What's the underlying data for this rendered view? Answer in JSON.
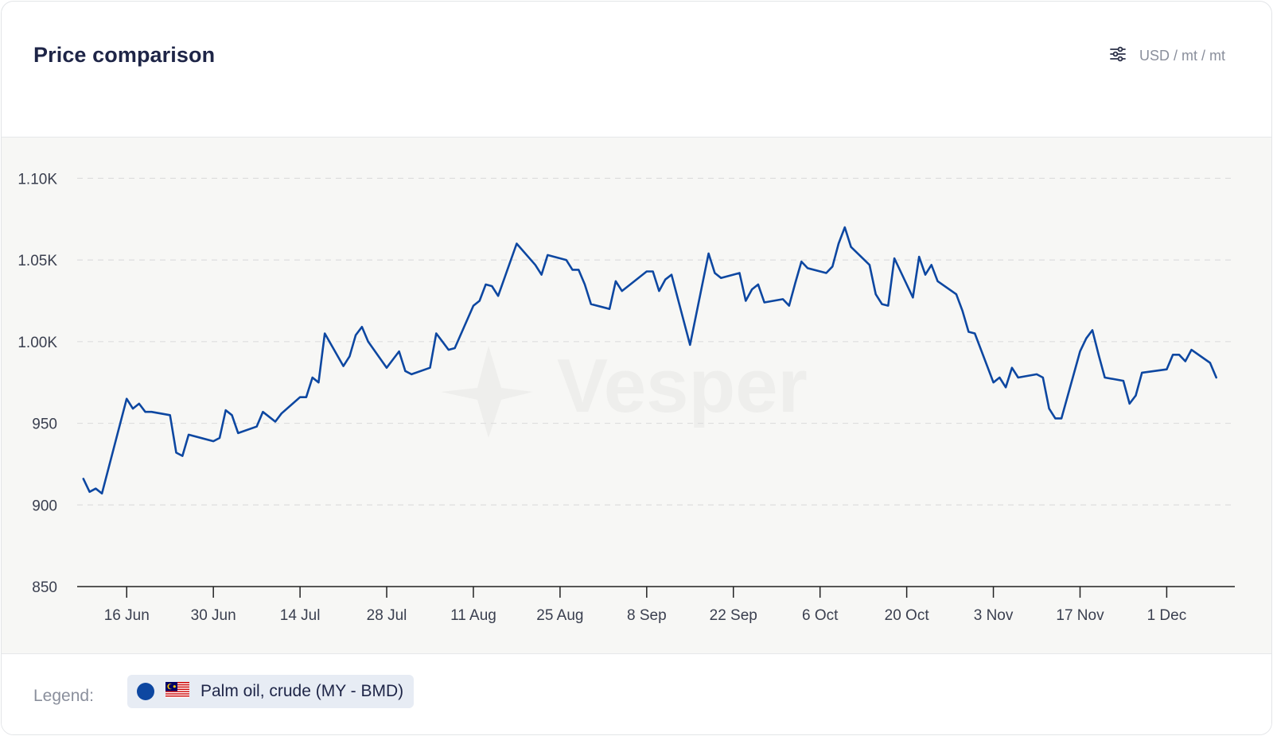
{
  "header": {
    "title": "Price comparison",
    "unit_label": "USD / mt / mt",
    "settings_icon": "sliders-icon"
  },
  "legend": {
    "label": "Legend:",
    "items": [
      {
        "name": "Palm oil, crude (MY - BMD)",
        "color": "#0d47a1",
        "flag": "malaysia-flag-icon"
      }
    ]
  },
  "watermark": "Vesper",
  "chart_data": {
    "type": "line",
    "title": "Price comparison",
    "xlabel": "",
    "ylabel": "",
    "ylim": [
      850,
      1125
    ],
    "yticks": [
      850,
      900,
      950,
      1000,
      1050,
      1100
    ],
    "ytick_labels": [
      "850",
      "900",
      "950",
      "1.00K",
      "1.05K",
      "1.10K"
    ],
    "xticks": [
      "2023-06-16",
      "2023-06-30",
      "2023-07-14",
      "2023-07-28",
      "2023-08-11",
      "2023-08-25",
      "2023-09-08",
      "2023-09-22",
      "2023-10-06",
      "2023-10-20",
      "2023-11-03",
      "2023-11-17",
      "2023-12-01"
    ],
    "xtick_labels": [
      "16 Jun",
      "30 Jun",
      "14 Jul",
      "28 Jul",
      "11 Aug",
      "25 Aug",
      "8 Sep",
      "22 Sep",
      "6 Oct",
      "20 Oct",
      "3 Nov",
      "17 Nov",
      "1 Dec"
    ],
    "xlim": [
      "2023-06-08",
      "2023-12-12"
    ],
    "grid": true,
    "legend_position": "bottom",
    "series": [
      {
        "name": "Palm oil, crude (MY - BMD)",
        "color": "#0d47a1",
        "points": [
          [
            "2023-06-09",
            916
          ],
          [
            "2023-06-10",
            908
          ],
          [
            "2023-06-11",
            910
          ],
          [
            "2023-06-12",
            907
          ],
          [
            "2023-06-16",
            965
          ],
          [
            "2023-06-17",
            959
          ],
          [
            "2023-06-18",
            962
          ],
          [
            "2023-06-19",
            957
          ],
          [
            "2023-06-20",
            957
          ],
          [
            "2023-06-23",
            955
          ],
          [
            "2023-06-24",
            932
          ],
          [
            "2023-06-25",
            930
          ],
          [
            "2023-06-26",
            943
          ],
          [
            "2023-06-30",
            939
          ],
          [
            "2023-07-01",
            941
          ],
          [
            "2023-07-02",
            958
          ],
          [
            "2023-07-03",
            955
          ],
          [
            "2023-07-04",
            944
          ],
          [
            "2023-07-07",
            948
          ],
          [
            "2023-07-08",
            957
          ],
          [
            "2023-07-09",
            954
          ],
          [
            "2023-07-10",
            951
          ],
          [
            "2023-07-11",
            956
          ],
          [
            "2023-07-14",
            966
          ],
          [
            "2023-07-15",
            966
          ],
          [
            "2023-07-16",
            978
          ],
          [
            "2023-07-17",
            975
          ],
          [
            "2023-07-18",
            1005
          ],
          [
            "2023-07-21",
            985
          ],
          [
            "2023-07-22",
            991
          ],
          [
            "2023-07-23",
            1004
          ],
          [
            "2023-07-24",
            1009
          ],
          [
            "2023-07-25",
            1000
          ],
          [
            "2023-07-28",
            984
          ],
          [
            "2023-07-29",
            989
          ],
          [
            "2023-07-30",
            994
          ],
          [
            "2023-07-31",
            982
          ],
          [
            "2023-08-01",
            980
          ],
          [
            "2023-08-04",
            984
          ],
          [
            "2023-08-05",
            1005
          ],
          [
            "2023-08-06",
            1000
          ],
          [
            "2023-08-07",
            995
          ],
          [
            "2023-08-08",
            996
          ],
          [
            "2023-08-11",
            1022
          ],
          [
            "2023-08-12",
            1025
          ],
          [
            "2023-08-13",
            1035
          ],
          [
            "2023-08-14",
            1034
          ],
          [
            "2023-08-15",
            1028
          ],
          [
            "2023-08-18",
            1060
          ],
          [
            "2023-08-21",
            1047
          ],
          [
            "2023-08-22",
            1041
          ],
          [
            "2023-08-23",
            1053
          ],
          [
            "2023-08-26",
            1050
          ],
          [
            "2023-08-27",
            1044
          ],
          [
            "2023-08-28",
            1044
          ],
          [
            "2023-08-29",
            1035
          ],
          [
            "2023-08-30",
            1023
          ],
          [
            "2023-09-02",
            1020
          ],
          [
            "2023-09-03",
            1037
          ],
          [
            "2023-09-04",
            1031
          ],
          [
            "2023-09-05",
            1034
          ],
          [
            "2023-09-08",
            1043
          ],
          [
            "2023-09-09",
            1043
          ],
          [
            "2023-09-10",
            1031
          ],
          [
            "2023-09-11",
            1038
          ],
          [
            "2023-09-12",
            1041
          ],
          [
            "2023-09-15",
            998
          ],
          [
            "2023-09-18",
            1054
          ],
          [
            "2023-09-19",
            1042
          ],
          [
            "2023-09-20",
            1039
          ],
          [
            "2023-09-23",
            1042
          ],
          [
            "2023-09-24",
            1025
          ],
          [
            "2023-09-25",
            1032
          ],
          [
            "2023-09-26",
            1035
          ],
          [
            "2023-09-27",
            1024
          ],
          [
            "2023-09-30",
            1026
          ],
          [
            "2023-10-01",
            1022
          ],
          [
            "2023-10-02",
            1036
          ],
          [
            "2023-10-03",
            1049
          ],
          [
            "2023-10-04",
            1045
          ],
          [
            "2023-10-07",
            1042
          ],
          [
            "2023-10-08",
            1046
          ],
          [
            "2023-10-09",
            1060
          ],
          [
            "2023-10-10",
            1070
          ],
          [
            "2023-10-11",
            1058
          ],
          [
            "2023-10-14",
            1047
          ],
          [
            "2023-10-15",
            1029
          ],
          [
            "2023-10-16",
            1023
          ],
          [
            "2023-10-17",
            1022
          ],
          [
            "2023-10-18",
            1051
          ],
          [
            "2023-10-21",
            1027
          ],
          [
            "2023-10-22",
            1052
          ],
          [
            "2023-10-23",
            1041
          ],
          [
            "2023-10-24",
            1047
          ],
          [
            "2023-10-25",
            1037
          ],
          [
            "2023-10-28",
            1029
          ],
          [
            "2023-10-29",
            1019
          ],
          [
            "2023-10-30",
            1006
          ],
          [
            "2023-10-31",
            1005
          ],
          [
            "2023-11-03",
            975
          ],
          [
            "2023-11-04",
            978
          ],
          [
            "2023-11-05",
            972
          ],
          [
            "2023-11-06",
            984
          ],
          [
            "2023-11-07",
            978
          ],
          [
            "2023-11-10",
            980
          ],
          [
            "2023-11-11",
            978
          ],
          [
            "2023-11-12",
            959
          ],
          [
            "2023-11-13",
            953
          ],
          [
            "2023-11-14",
            953
          ],
          [
            "2023-11-17",
            994
          ],
          [
            "2023-11-18",
            1002
          ],
          [
            "2023-11-19",
            1007
          ],
          [
            "2023-11-20",
            992
          ],
          [
            "2023-11-21",
            978
          ],
          [
            "2023-11-24",
            976
          ],
          [
            "2023-11-25",
            962
          ],
          [
            "2023-11-26",
            967
          ],
          [
            "2023-11-27",
            981
          ],
          [
            "2023-12-01",
            983
          ],
          [
            "2023-12-02",
            992
          ],
          [
            "2023-12-03",
            992
          ],
          [
            "2023-12-04",
            988
          ],
          [
            "2023-12-05",
            995
          ],
          [
            "2023-12-08",
            987
          ],
          [
            "2023-12-09",
            978
          ]
        ]
      }
    ]
  }
}
